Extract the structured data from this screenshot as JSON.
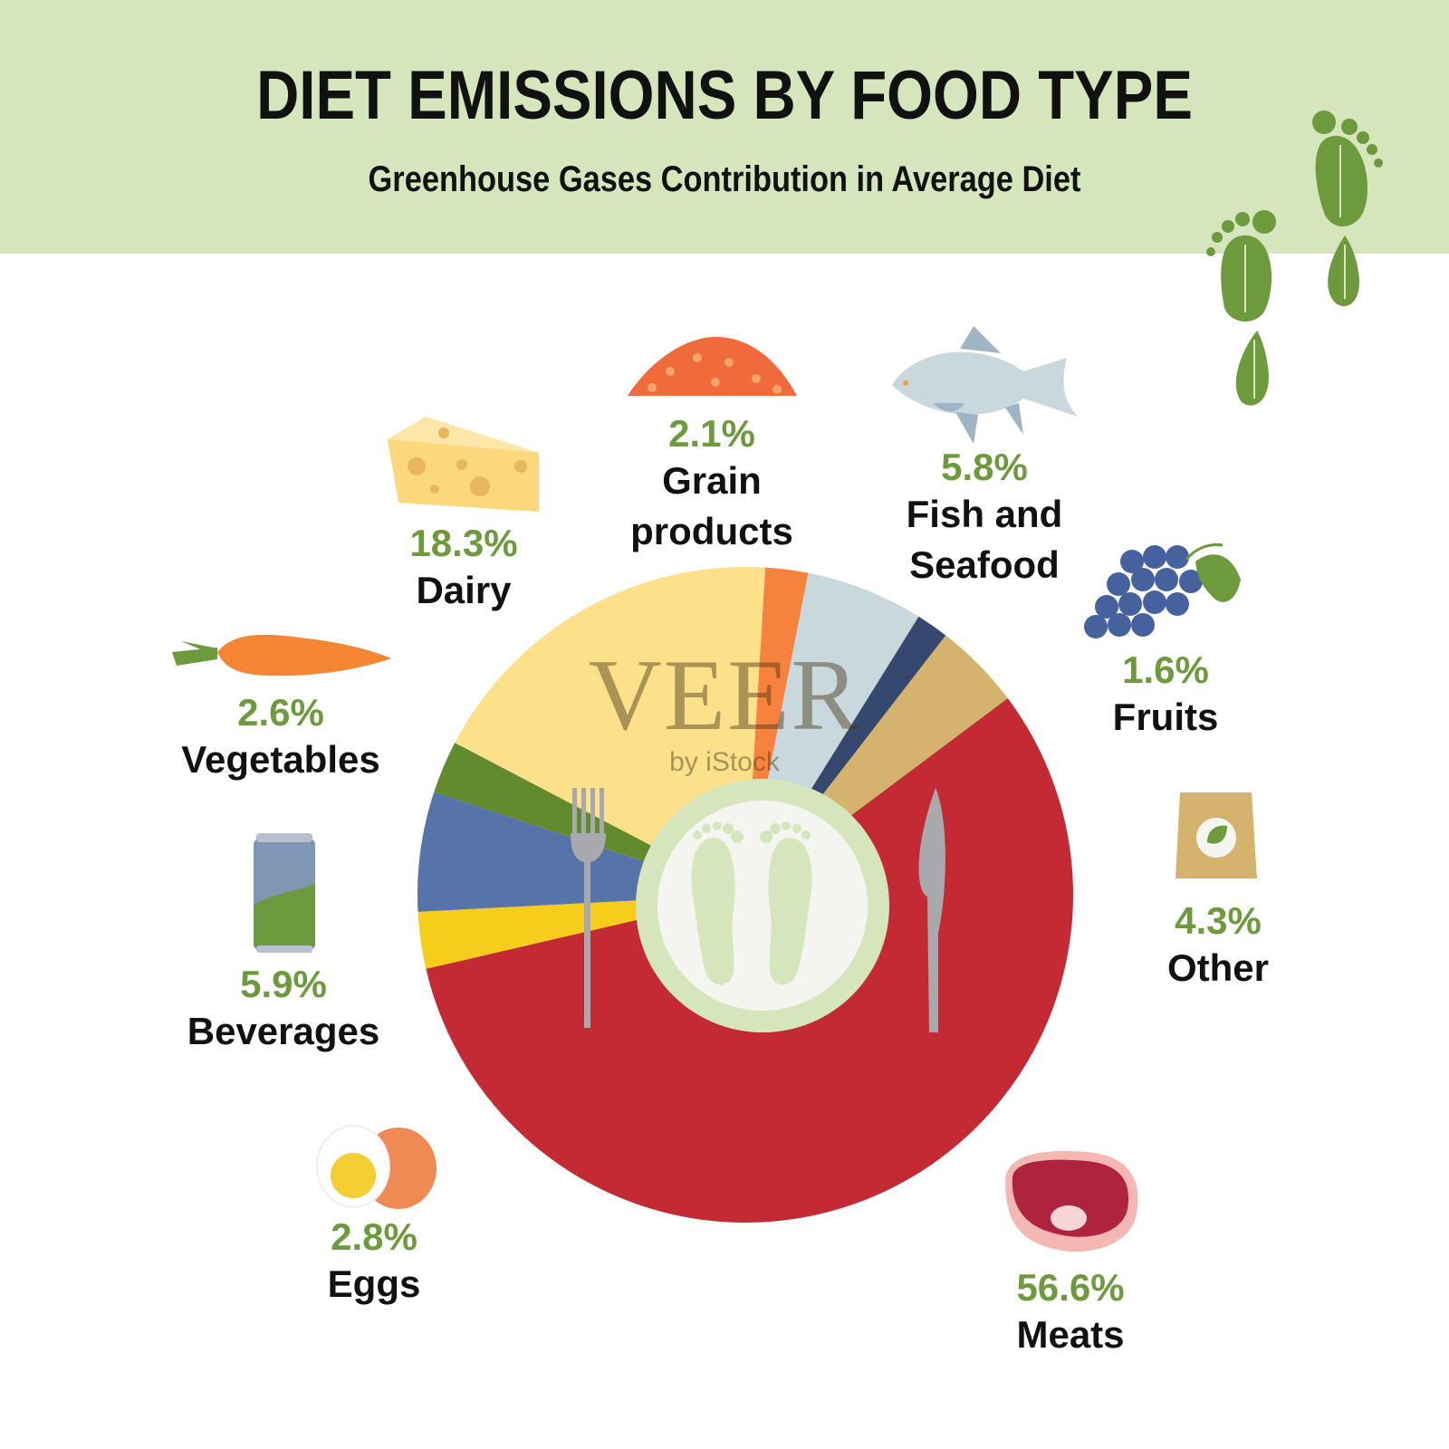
{
  "header": {
    "title": "DIET EMISSIONS BY FOOD TYPE",
    "subtitle": "Greenhouse Gases Contribution in Average Diet"
  },
  "watermark": {
    "brand": "VEER",
    "sub": "by iStock"
  },
  "colors": {
    "header_bg": "#d6e6bc",
    "percent_text": "#6c9a3c",
    "footprint": "#6c9a3c",
    "plate_ring": "#d6e6bc",
    "plate_center": "#f4f5f1"
  },
  "chart_data": {
    "type": "pie",
    "title": "DIET EMISSIONS BY FOOD TYPE",
    "subtitle": "Greenhouse Gases Contribution in Average Diet",
    "unit": "%",
    "slices": [
      {
        "name": "Grain products",
        "value": 2.1,
        "label": "2.1%",
        "color": "#f7823e",
        "icon": "grain-pile-icon"
      },
      {
        "name": "Fish and Seafood",
        "value": 5.8,
        "label": "5.8%",
        "color": "#c9d8dc",
        "icon": "fish-icon"
      },
      {
        "name": "Fruits",
        "value": 1.6,
        "label": "1.6%",
        "color": "#35486e",
        "icon": "grapes-icon"
      },
      {
        "name": "Other",
        "value": 4.3,
        "label": "4.3%",
        "color": "#d4b46d",
        "icon": "bag-icon"
      },
      {
        "name": "Meats",
        "value": 56.6,
        "label": "56.6%",
        "color": "#c32a33",
        "icon": "steak-icon"
      },
      {
        "name": "Eggs",
        "value": 2.8,
        "label": "2.8%",
        "color": "#f7cd1b",
        "icon": "egg-icon"
      },
      {
        "name": "Beverages",
        "value": 5.9,
        "label": "5.9%",
        "color": "#5674aa",
        "icon": "can-icon"
      },
      {
        "name": "Vegetables",
        "value": 2.6,
        "label": "2.6%",
        "color": "#628b2e",
        "icon": "carrot-icon"
      },
      {
        "name": "Dairy",
        "value": 18.3,
        "label": "18.3%",
        "color": "#fde08a",
        "icon": "cheese-icon"
      }
    ]
  }
}
